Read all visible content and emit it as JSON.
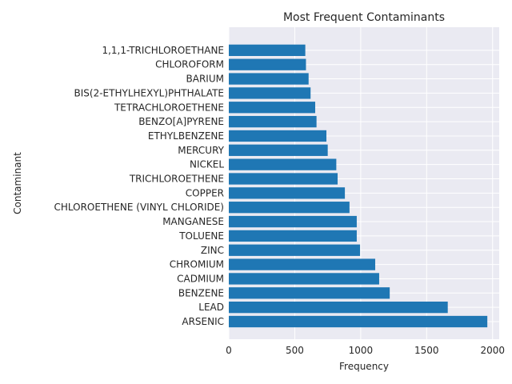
{
  "chart_data": {
    "type": "bar",
    "orientation": "horizontal",
    "title": "Most Frequent Contaminants",
    "xlabel": "Frequency",
    "ylabel": "Contaminant",
    "xlim": [
      0,
      2050
    ],
    "x_ticks": [
      0,
      500,
      1000,
      1500,
      2000
    ],
    "grid": true,
    "bar_color": "#1f77b4",
    "background_color": "#eaeaf2",
    "grid_color": "#ffffff",
    "categories": [
      "ARSENIC",
      "LEAD",
      "BENZENE",
      "CADMIUM",
      "CHROMIUM",
      "ZINC",
      "TOLUENE",
      "MANGANESE",
      "CHLOROETHENE (VINYL CHLORIDE)",
      "COPPER",
      "TRICHLOROETHENE",
      "NICKEL",
      "MERCURY",
      "ETHYLBENZENE",
      "BENZO[A]PYRENE",
      "TETRACHLOROETHENE",
      "BIS(2-ETHYLHEXYL)PHTHALATE",
      "BARIUM",
      "CHLOROFORM",
      "1,1,1-TRICHLOROETHANE"
    ],
    "values": [
      1960,
      1660,
      1220,
      1140,
      1110,
      995,
      970,
      970,
      915,
      880,
      825,
      815,
      750,
      740,
      665,
      655,
      620,
      605,
      585,
      580
    ]
  }
}
